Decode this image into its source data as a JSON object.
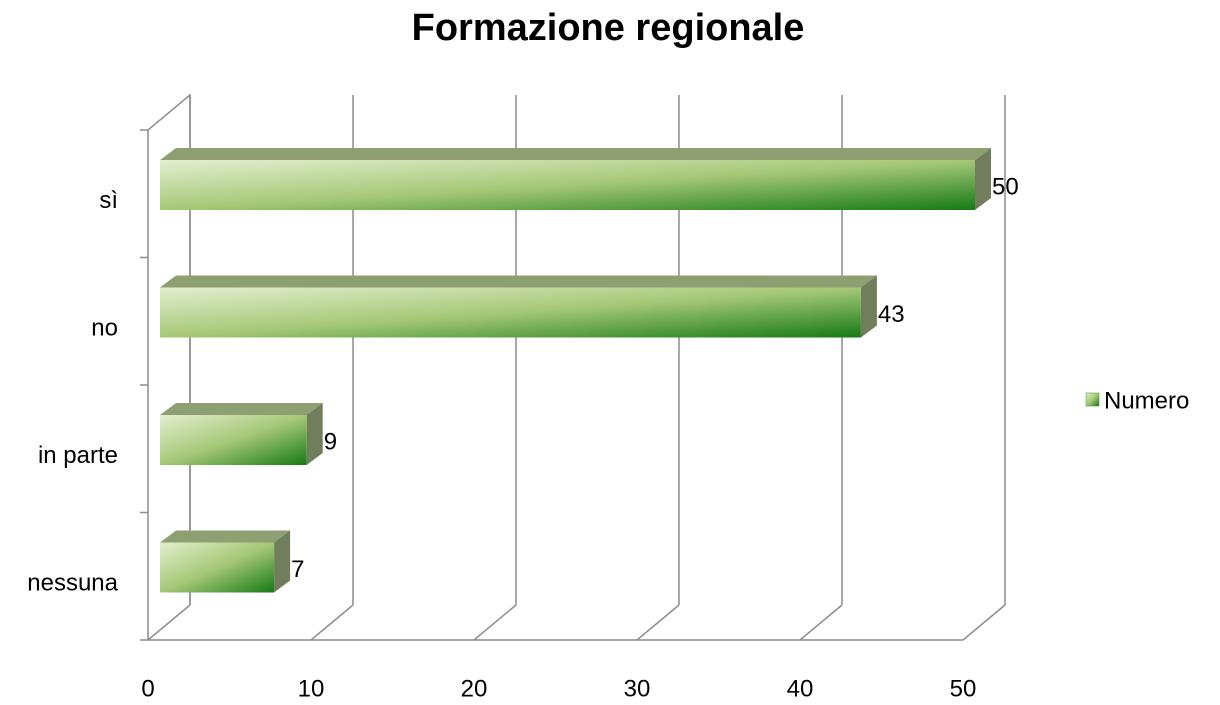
{
  "chart_data": {
    "type": "bar",
    "orientation": "horizontal",
    "title": "Formazione regionale",
    "categories": [
      "sì",
      "no",
      "in parte",
      "nessuna"
    ],
    "series": [
      {
        "name": "Numero",
        "color": "#3f8f2a",
        "values": [
          50,
          43,
          9,
          7
        ]
      }
    ],
    "xlim": [
      0,
      50
    ],
    "xticks": [
      0,
      10,
      20,
      30,
      40,
      50
    ],
    "grid": true,
    "legend": "right"
  }
}
